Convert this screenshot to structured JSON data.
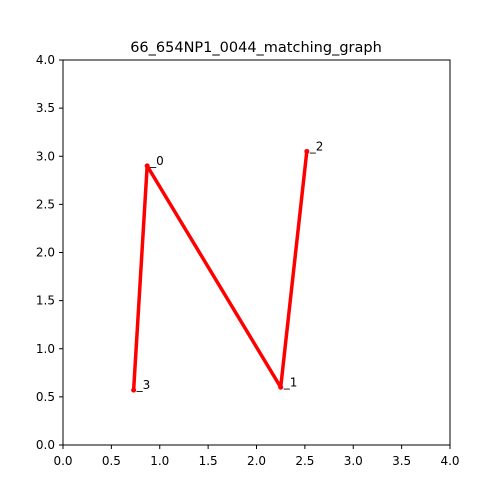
{
  "chart_data": {
    "type": "line",
    "title": "66_654NP1_0044_matching_graph",
    "xlabel": "",
    "ylabel": "",
    "xlim": [
      0.0,
      4.0
    ],
    "ylim": [
      0.0,
      4.0
    ],
    "xticks": [
      "0.0",
      "0.5",
      "1.0",
      "1.5",
      "2.0",
      "2.5",
      "3.0",
      "3.5",
      "4.0"
    ],
    "yticks": [
      "0.0",
      "0.5",
      "1.0",
      "1.5",
      "2.0",
      "2.5",
      "3.0",
      "3.5",
      "4.0"
    ],
    "grid": false,
    "line_color": "#ff0000",
    "nodes": [
      {
        "label": "0",
        "x": 0.87,
        "y": 2.9
      },
      {
        "label": "1",
        "x": 2.25,
        "y": 0.6
      },
      {
        "label": "2",
        "x": 2.52,
        "y": 3.05
      },
      {
        "label": "3",
        "x": 0.73,
        "y": 0.57
      }
    ],
    "edges": [
      [
        3,
        0
      ],
      [
        0,
        1
      ],
      [
        1,
        2
      ]
    ]
  }
}
